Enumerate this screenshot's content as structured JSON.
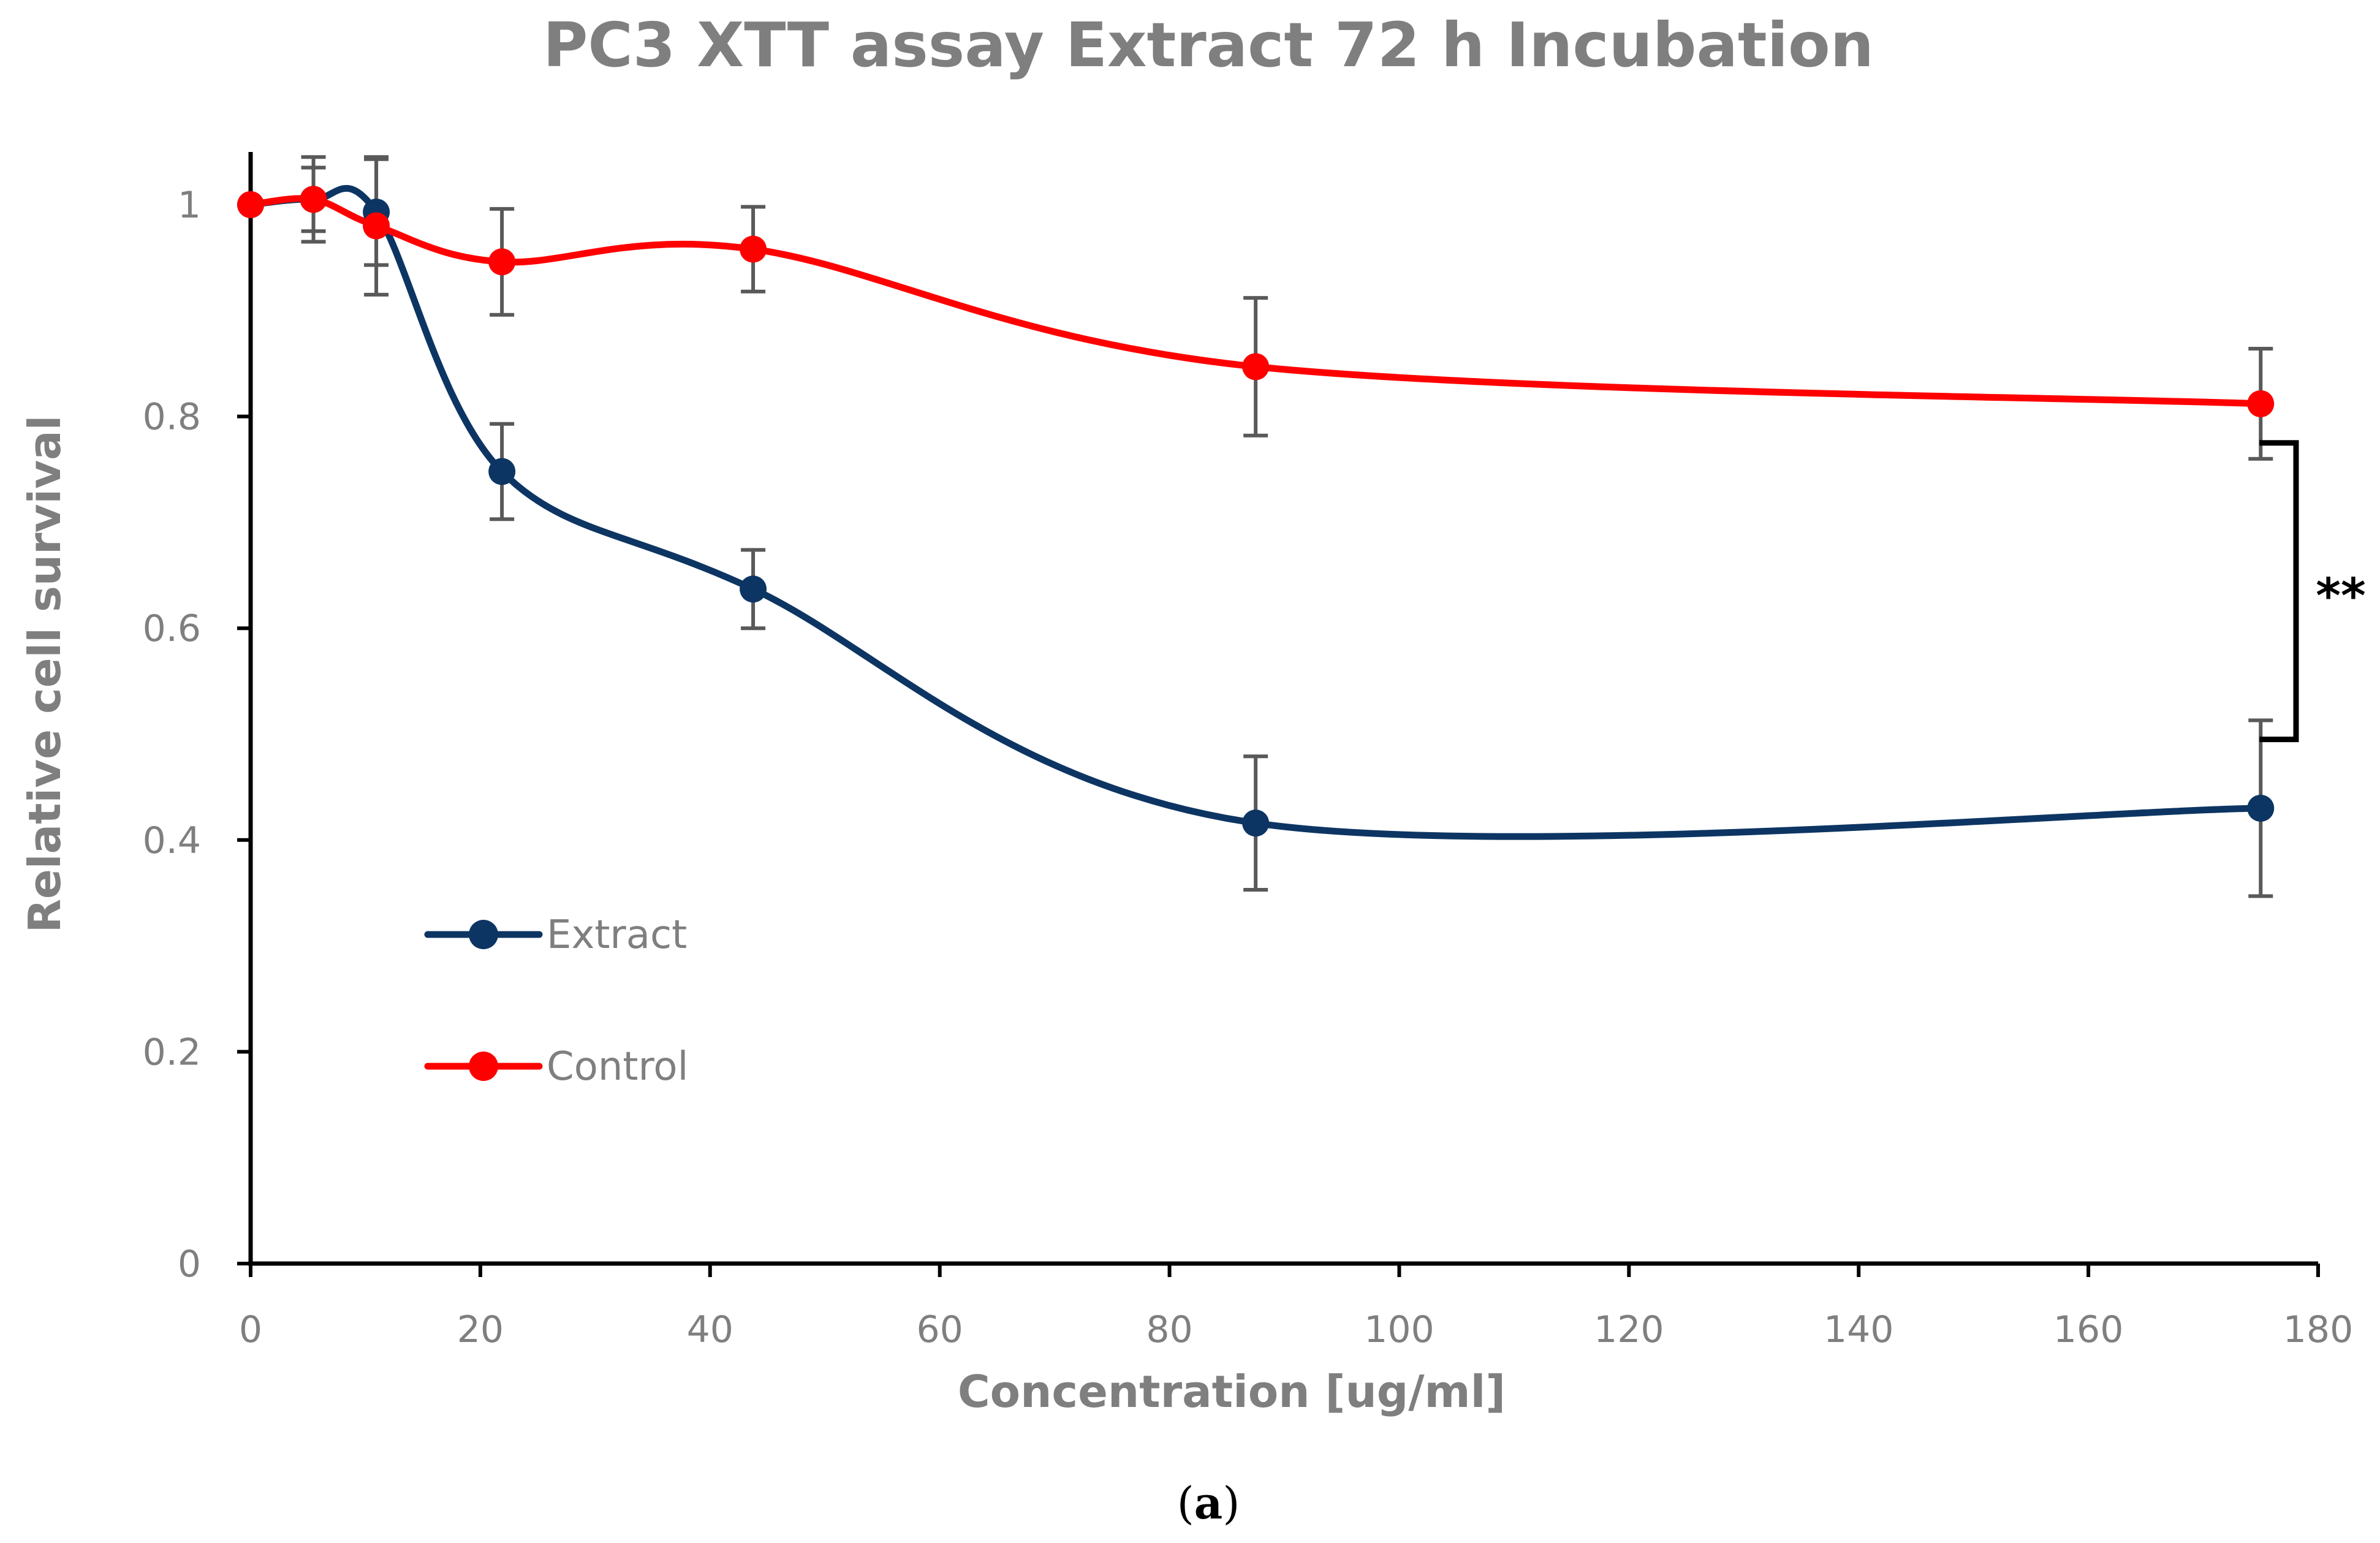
{
  "chart_data": {
    "type": "line",
    "title": "PC3 XTT assay Extract 72 h Incubation",
    "xlabel": "Concentration [ug/ml]",
    "ylabel": "Relative cell survival",
    "xlim": [
      0,
      180
    ],
    "ylim": [
      0,
      1
    ],
    "x_ticks": [
      0,
      20,
      40,
      60,
      80,
      100,
      120,
      140,
      160,
      180
    ],
    "x_tick_labels": [
      "0",
      "20",
      "40",
      "60",
      "80",
      "100",
      "120",
      "140",
      "160",
      "180"
    ],
    "y_ticks": [
      0,
      0.2,
      0.4,
      0.6,
      0.8,
      1
    ],
    "y_tick_labels": [
      "0",
      "0.2",
      "0.4",
      "0.6",
      "0.8",
      "1"
    ],
    "grid": false,
    "smooth": true,
    "legend_position": "left-middle",
    "series": [
      {
        "name": "Extract",
        "color": "#0d3563",
        "x": [
          0,
          5.47,
          10.94,
          21.88,
          43.75,
          87.5,
          175
        ],
        "values": [
          1.0,
          1.005,
          0.993,
          0.748,
          0.637,
          0.416,
          0.43
        ],
        "error": [
          0.0,
          0.04,
          0.05,
          0.045,
          0.037,
          0.063,
          0.083
        ]
      },
      {
        "name": "Control",
        "color": "#ff0000",
        "x": [
          0,
          5.47,
          10.94,
          21.88,
          43.75,
          87.5,
          175
        ],
        "values": [
          1.0,
          1.005,
          0.98,
          0.946,
          0.958,
          0.847,
          0.812
        ],
        "error": [
          0.0,
          0.03,
          0.065,
          0.05,
          0.04,
          0.065,
          0.052
        ]
      }
    ],
    "significance": {
      "label": "**",
      "x": 175,
      "y_top": 0.775,
      "y_bottom": 0.495
    },
    "panel_label": {
      "open": "(",
      "letter": "a",
      "close": ")"
    }
  }
}
